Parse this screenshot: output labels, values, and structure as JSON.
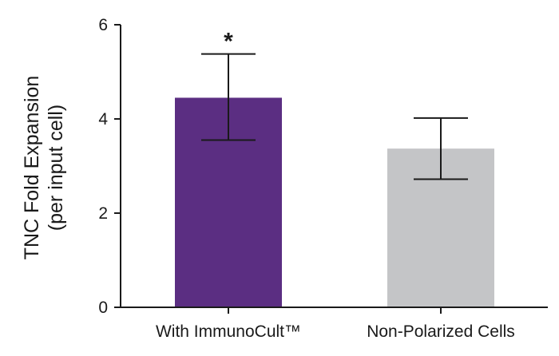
{
  "chart_data": {
    "type": "bar",
    "categories": [
      "With ImmunoCult™",
      "Non-Polarized Cells"
    ],
    "values": [
      4.45,
      3.37
    ],
    "error_upper": [
      5.38,
      4.02
    ],
    "error_lower": [
      3.55,
      2.72
    ],
    "significance": [
      "*",
      ""
    ],
    "colors": [
      "#5b2e82",
      "#c4c5c7"
    ],
    "ylabel_lines": [
      "TNC Fold Expansion",
      "(per input cell)"
    ],
    "xlabel": "",
    "ylim": [
      0,
      6
    ],
    "yticks": [
      0,
      2,
      4,
      6
    ],
    "grid": false,
    "legend": "none"
  }
}
